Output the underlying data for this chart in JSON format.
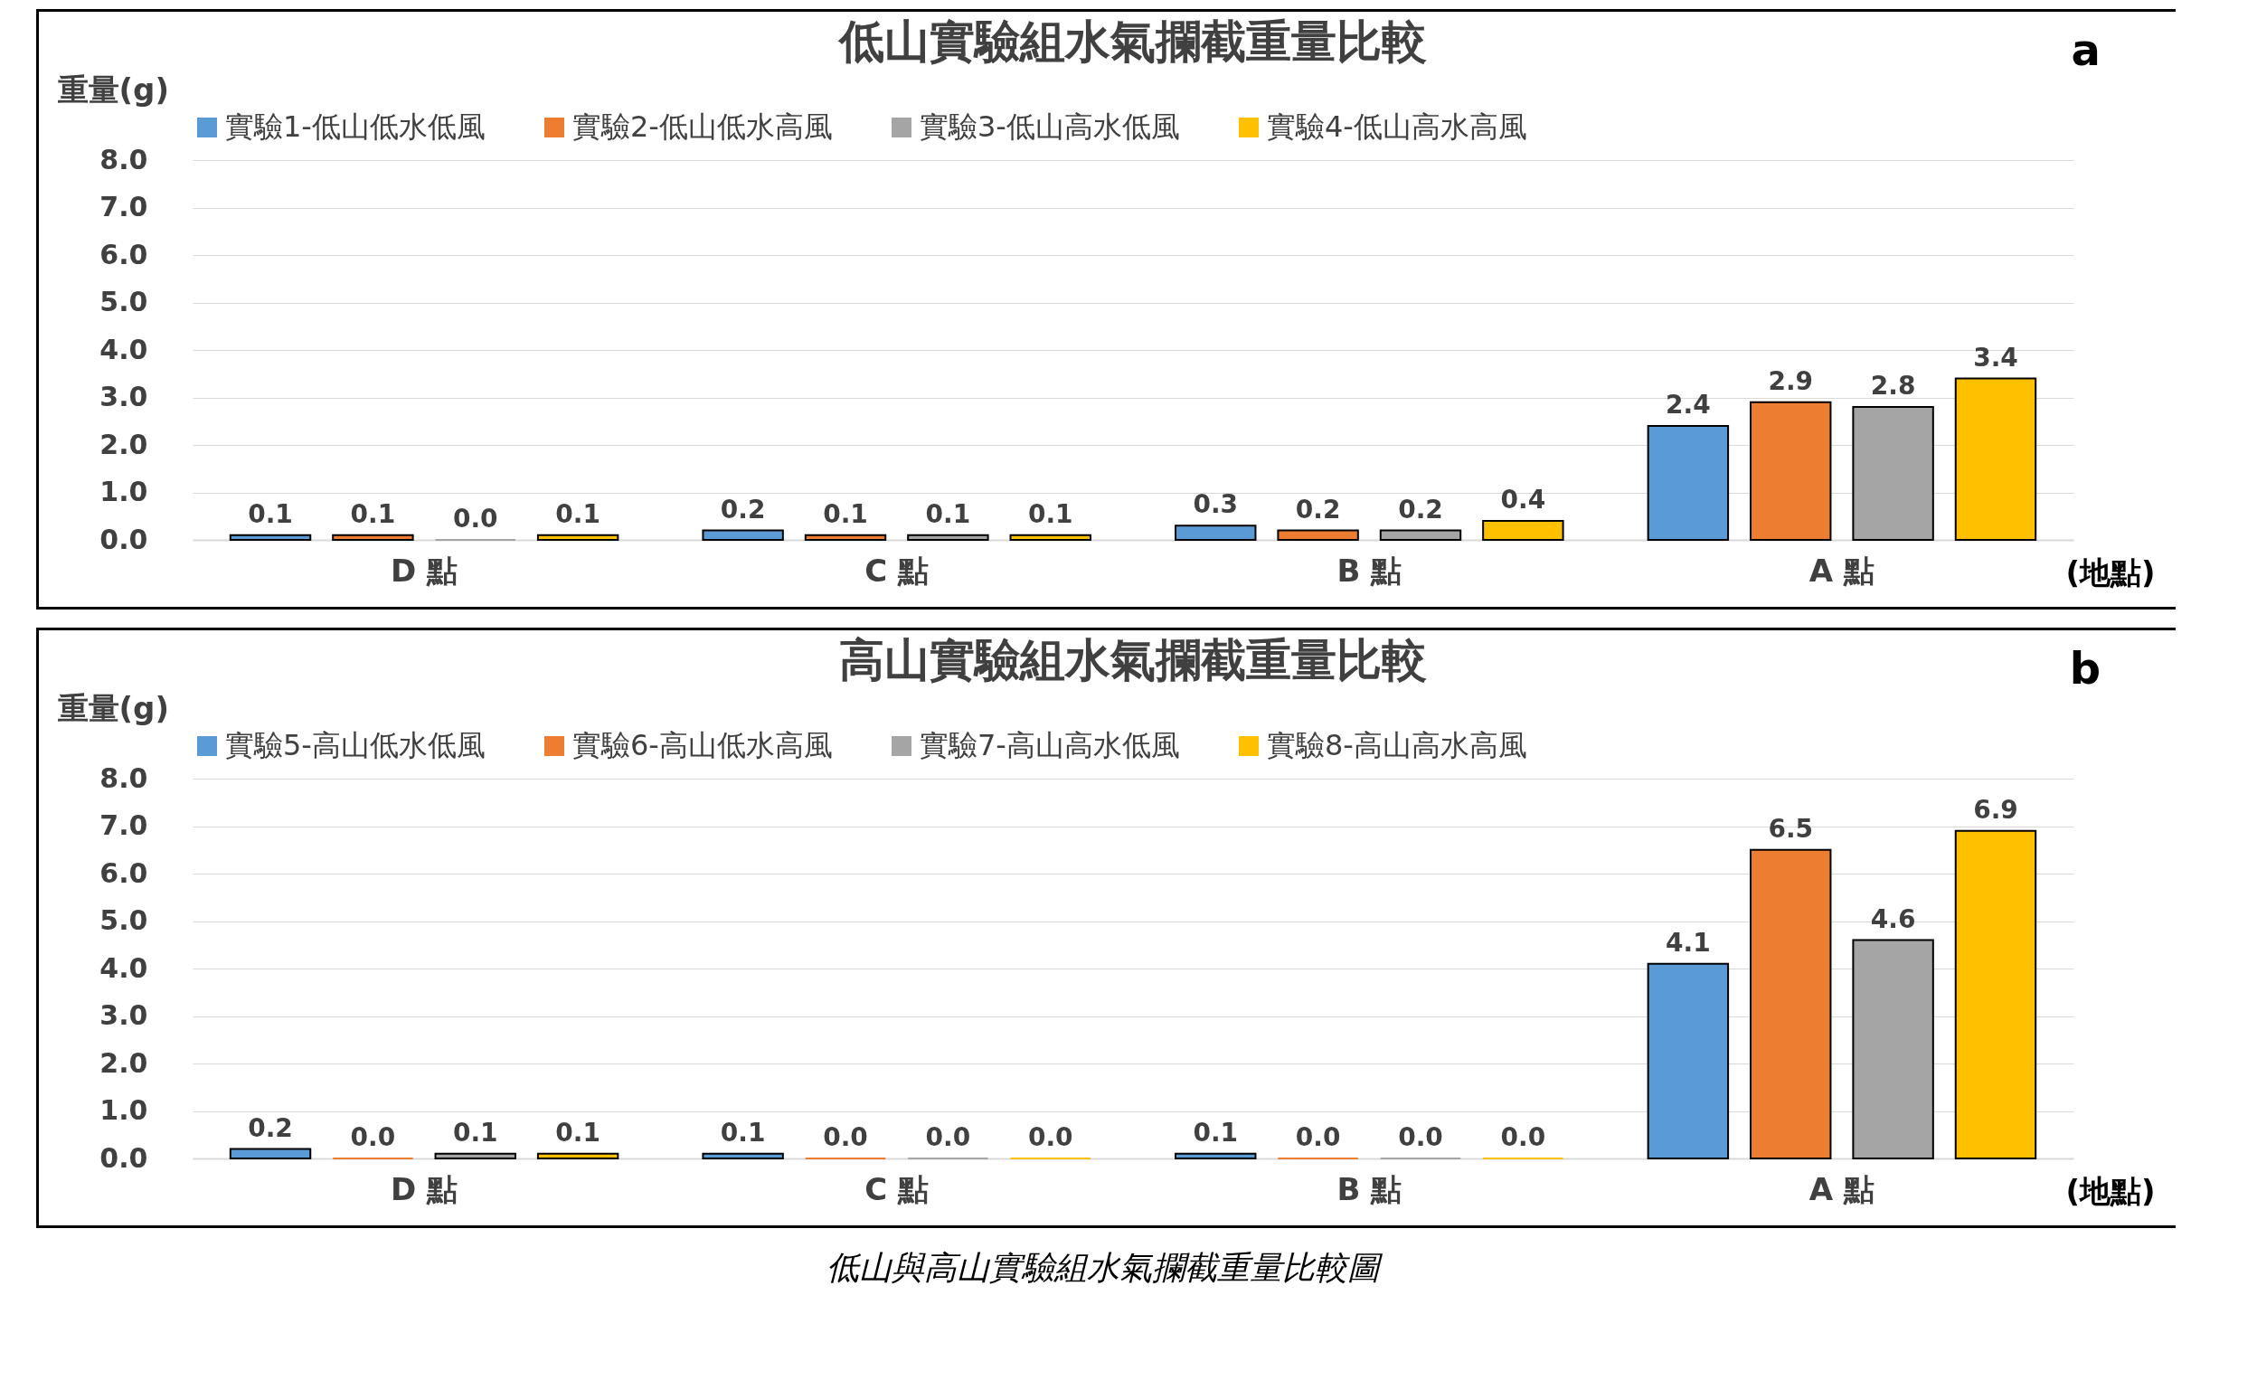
{
  "chart_data": [
    {
      "type": "bar",
      "title": "低山實驗組水氣攔截重量比較",
      "ylabel": "重量(g)",
      "xlabel": "(地點)",
      "annotations": [
        "a"
      ],
      "categories": [
        "D 點",
        "C 點",
        "B 點",
        "A 點"
      ],
      "ylim": [
        0,
        8
      ],
      "yticks": [
        {
          "value": 0,
          "label": "0.0"
        },
        {
          "value": 1,
          "label": "1.0"
        },
        {
          "value": 2,
          "label": "2.0"
        },
        {
          "value": 3,
          "label": "3.0"
        },
        {
          "value": 4,
          "label": "4.0"
        },
        {
          "value": 5,
          "label": "5.0"
        },
        {
          "value": 6,
          "label": "6.0"
        },
        {
          "value": 7,
          "label": "7.0"
        },
        {
          "value": 8,
          "label": "8.0"
        }
      ],
      "grid": "y",
      "legend": "top",
      "series": [
        {
          "name": "實驗1-低山低水低風",
          "color": "#5b9bd5",
          "values": [
            0.1,
            0.2,
            0.3,
            2.4
          ],
          "value_labels": [
            "0.1",
            "0.2",
            "0.3",
            "2.4"
          ]
        },
        {
          "name": "實驗2-低山低水高風",
          "color": "#ed7d31",
          "values": [
            0.1,
            0.1,
            0.2,
            2.9
          ],
          "value_labels": [
            "0.1",
            "0.1",
            "0.2",
            "2.9"
          ]
        },
        {
          "name": "實驗3-低山高水低風",
          "color": "#a5a5a5",
          "values": [
            0.0,
            0.1,
            0.2,
            2.8
          ],
          "value_labels": [
            "0.0",
            "0.1",
            "0.2",
            "2.8"
          ]
        },
        {
          "name": "實驗4-低山高水高風",
          "color": "#ffc000",
          "values": [
            0.1,
            0.1,
            0.4,
            3.4
          ],
          "value_labels": [
            "0.1",
            "0.1",
            "0.4",
            "3.4"
          ]
        }
      ]
    },
    {
      "type": "bar",
      "title": "高山實驗組水氣攔截重量比較",
      "ylabel": "重量(g)",
      "xlabel": "(地點)",
      "annotations": [
        "b",
        "低山與高山實驗組水氣攔截重量比較圖"
      ],
      "categories": [
        "D 點",
        "C 點",
        "B 點",
        "A 點"
      ],
      "ylim": [
        0,
        8
      ],
      "yticks": [
        {
          "value": 0,
          "label": "0.0"
        },
        {
          "value": 1,
          "label": "1.0"
        },
        {
          "value": 2,
          "label": "2.0"
        },
        {
          "value": 3,
          "label": "3.0"
        },
        {
          "value": 4,
          "label": "4.0"
        },
        {
          "value": 5,
          "label": "5.0"
        },
        {
          "value": 6,
          "label": "6.0"
        },
        {
          "value": 7,
          "label": "7.0"
        },
        {
          "value": 8,
          "label": "8.0"
        }
      ],
      "grid": "y",
      "legend": "top",
      "series": [
        {
          "name": "實驗5-高山低水低風",
          "color": "#5b9bd5",
          "values": [
            0.2,
            0.1,
            0.1,
            4.1
          ],
          "value_labels": [
            "0.2",
            "0.1",
            "0.1",
            "4.1"
          ]
        },
        {
          "name": "實驗6-高山低水高風",
          "color": "#ed7d31",
          "values": [
            0.0,
            0.0,
            0.0,
            6.5
          ],
          "value_labels": [
            "0.0",
            "0.0",
            "0.0",
            "6.5"
          ]
        },
        {
          "name": "實驗7-高山高水低風",
          "color": "#a5a5a5",
          "values": [
            0.1,
            0.0,
            0.0,
            4.6
          ],
          "value_labels": [
            "0.1",
            "0.0",
            "0.0",
            "4.6"
          ]
        },
        {
          "name": "實驗8-高山高水高風",
          "color": "#ffc000",
          "values": [
            0.1,
            0.0,
            0.0,
            6.9
          ],
          "value_labels": [
            "0.1",
            "0.0",
            "0.0",
            "6.9"
          ]
        }
      ]
    }
  ]
}
